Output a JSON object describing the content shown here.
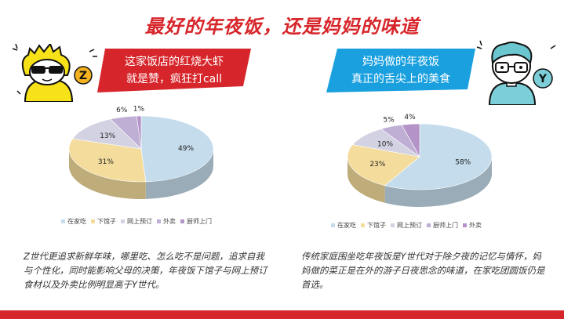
{
  "title": "最好的年夜饭，还是妈妈的味道",
  "left": {
    "avatar_letter": "Z",
    "banner_lines": [
      "这家饭店的红烧大虾",
      "就是赞，疯狂打call"
    ],
    "description": "Z世代更追求新鲜年味，哪里吃、怎么吃不是问题，追求自我与个性化，同时能影响父母的决策，年夜饭下馆子与网上预订食材以及外卖比例明显高于Y世代。"
  },
  "right": {
    "avatar_letter": "Y",
    "banner_lines": [
      "妈妈做的年夜饭",
      "真正的舌尖上的美食"
    ],
    "description": "传统家庭围坐吃年夜饭是Y世代对于除夕夜的记忆与情怀，妈妈做的菜正是在外的游子日夜思念的味道，在家吃团圆饭仍是首选。"
  },
  "colors": {
    "accent": "#d7262b",
    "banner_right": "#1aa0df"
  },
  "chart_data": [
    {
      "type": "pie",
      "slices": [
        {
          "label": "在家吃",
          "value": 49,
          "color": "#c4dcec",
          "display": "49%"
        },
        {
          "label": "下馆子",
          "value": 31,
          "color": "#f3dc9c",
          "display": "31%"
        },
        {
          "label": "网上预订",
          "value": 13,
          "color": "#d3d2e3",
          "display": "13%"
        },
        {
          "label": "外卖",
          "value": 6,
          "color": "#c0afd4",
          "display": "6%"
        },
        {
          "label": "厨师上门",
          "value": 1,
          "color": "#b493c8",
          "display": "1%"
        }
      ],
      "legend": [
        "在家吃",
        "下馆子",
        "网上预订",
        "外卖",
        "厨师上门"
      ],
      "legend_placement": "bottom"
    },
    {
      "type": "pie",
      "slices": [
        {
          "label": "在家吃",
          "value": 58,
          "color": "#c4dcec",
          "display": "58%"
        },
        {
          "label": "下馆子",
          "value": 23,
          "color": "#f3dc9c",
          "display": "23%"
        },
        {
          "label": "网上预订",
          "value": 10,
          "color": "#d3d2e3",
          "display": "10%"
        },
        {
          "label": "厨师上门",
          "value": 5,
          "color": "#c0afd4",
          "display": "5%"
        },
        {
          "label": "外卖",
          "value": 4,
          "color": "#b493c8",
          "display": "4%"
        }
      ],
      "legend": [
        "在家吃",
        "下馆子",
        "网上预订",
        "厨师上门",
        "外卖"
      ],
      "legend_placement": "bottom"
    }
  ]
}
